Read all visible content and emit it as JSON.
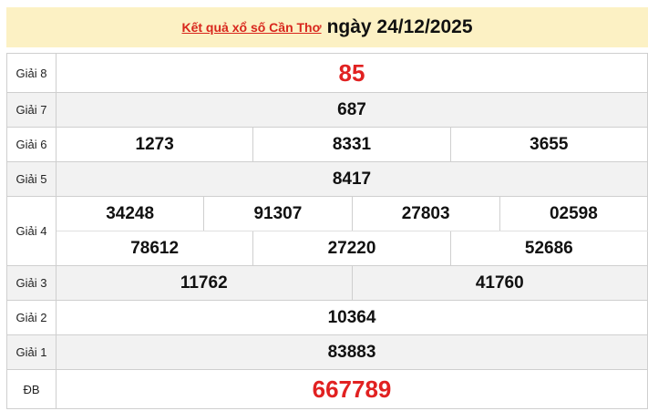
{
  "header": {
    "link_text": "Kết quả xổ số Cần Thơ",
    "date_text": "ngày 24/12/2025"
  },
  "colors": {
    "accent_red": "#e12121",
    "header_bg": "#fcf1c4",
    "row_alt_bg": "#f2f2f2"
  },
  "prizes": [
    {
      "label": "Giải 8",
      "numbers": [
        "85"
      ]
    },
    {
      "label": "Giải 7",
      "numbers": [
        "687"
      ]
    },
    {
      "label": "Giải 6",
      "numbers": [
        "1273",
        "8331",
        "3655"
      ]
    },
    {
      "label": "Giải 5",
      "numbers": [
        "8417"
      ]
    },
    {
      "label": "Giải 4",
      "numbers": [
        "34248",
        "91307",
        "27803",
        "02598",
        "78612",
        "27220",
        "52686"
      ]
    },
    {
      "label": "Giải 3",
      "numbers": [
        "11762",
        "41760"
      ]
    },
    {
      "label": "Giải 2",
      "numbers": [
        "10364"
      ]
    },
    {
      "label": "Giải 1",
      "numbers": [
        "83883"
      ]
    },
    {
      "label": "ĐB",
      "numbers": [
        "667789"
      ]
    }
  ]
}
